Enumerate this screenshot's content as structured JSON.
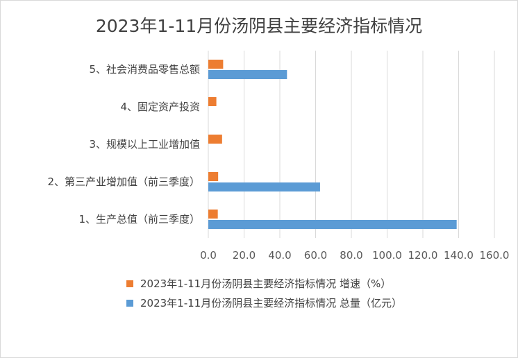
{
  "chart_data": {
    "type": "bar",
    "orientation": "horizontal",
    "title": "2023年1-11月份汤阴县主要经济指标情况",
    "categories": [
      "1、生产总值（前三季度）",
      "2、第三产业增加值（前三季度）",
      "3、规模以上工业增加值",
      "4、固定资产投资",
      "5、社会消费品零售总额"
    ],
    "series": [
      {
        "name": "2023年1-11月份汤阴县主要经济指标情况 增速（%）",
        "color": "#ed7d31",
        "values": [
          5.3,
          5.5,
          7.7,
          4.5,
          8.3
        ]
      },
      {
        "name": "2023年1-11月份汤阴县主要经济指标情况 总量（亿元）",
        "color": "#5b9bd5",
        "values": [
          138.9,
          62.5,
          null,
          null,
          44.0
        ]
      }
    ],
    "xlim": [
      0,
      160
    ],
    "xticks": [
      "0.0",
      "20.0",
      "40.0",
      "60.0",
      "80.0",
      "100.0",
      "120.0",
      "140.0",
      "160.0"
    ],
    "grid": true,
    "legend_position": "bottom"
  }
}
